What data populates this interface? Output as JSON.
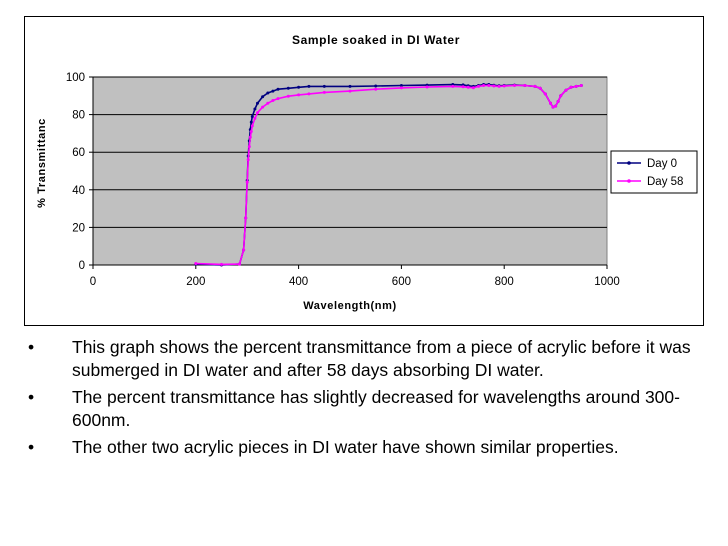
{
  "chart_data": {
    "type": "line",
    "title": "Sample soaked in DI Water",
    "xlabel": "Wavelength(nm)",
    "ylabel": "% Transmittanc",
    "xlim": [
      0,
      1000
    ],
    "ylim": [
      0,
      100
    ],
    "xticks": [
      0,
      200,
      400,
      600,
      800,
      1000
    ],
    "yticks": [
      0,
      20,
      40,
      60,
      80,
      100
    ],
    "grid": "horizontal",
    "plot_background": "#c0c0c0",
    "legend_position": "right",
    "series": [
      {
        "name": "Day 0",
        "color": "#000080",
        "x": [
          200,
          250,
          285,
          293,
          297,
          300,
          302,
          304,
          306,
          308,
          310,
          315,
          320,
          330,
          340,
          350,
          360,
          380,
          400,
          420,
          450,
          500,
          550,
          600,
          650,
          700,
          720,
          730,
          740,
          750,
          760,
          770,
          780,
          790,
          800,
          820,
          840,
          860,
          870,
          880,
          890,
          895,
          900,
          905,
          910,
          920,
          930,
          940,
          950
        ],
        "y": [
          0.5,
          0,
          0.5,
          8,
          25,
          45,
          58,
          66,
          72,
          76,
          79,
          83,
          86,
          89.5,
          91.5,
          92.5,
          93.5,
          94,
          94.5,
          95,
          95,
          95,
          95.2,
          95.5,
          95.7,
          96,
          95.8,
          95.3,
          95,
          95.5,
          96,
          96,
          95.6,
          95.3,
          95.5,
          95.7,
          95.5,
          95,
          94,
          91,
          86,
          84,
          84.5,
          87,
          90,
          93,
          94.5,
          95,
          95.5
        ]
      },
      {
        "name": "Day 58",
        "color": "#ff00ff",
        "x": [
          200,
          250,
          285,
          293,
          297,
          300,
          302,
          304,
          306,
          308,
          310,
          315,
          320,
          330,
          340,
          350,
          360,
          380,
          400,
          420,
          450,
          500,
          550,
          600,
          650,
          700,
          720,
          730,
          740,
          750,
          760,
          770,
          780,
          790,
          800,
          820,
          840,
          860,
          870,
          880,
          890,
          895,
          900,
          905,
          910,
          920,
          930,
          940,
          950
        ],
        "y": [
          0.8,
          0.3,
          0.5,
          8,
          25,
          44,
          56,
          63,
          68,
          71,
          74,
          78,
          81,
          84,
          86,
          87.5,
          88.5,
          89.8,
          90.5,
          91,
          91.8,
          92.5,
          93.5,
          94.2,
          94.7,
          95,
          94.8,
          94.5,
          94.3,
          95,
          95.5,
          95.5,
          95.2,
          95,
          95.2,
          95.5,
          95.5,
          95,
          94,
          91,
          86,
          84,
          84.5,
          87,
          90,
          93,
          94.5,
          95,
          95.5
        ]
      }
    ]
  },
  "bullets": [
    "This graph shows the percent transmittance from a piece of acrylic before it was submerged in DI water and after 58 days absorbing DI water.",
    "The percent transmittance has slightly decreased for wavelengths around 300-600nm.",
    "The other two acrylic pieces in DI water have shown similar properties."
  ],
  "bullet_glyph": "•"
}
